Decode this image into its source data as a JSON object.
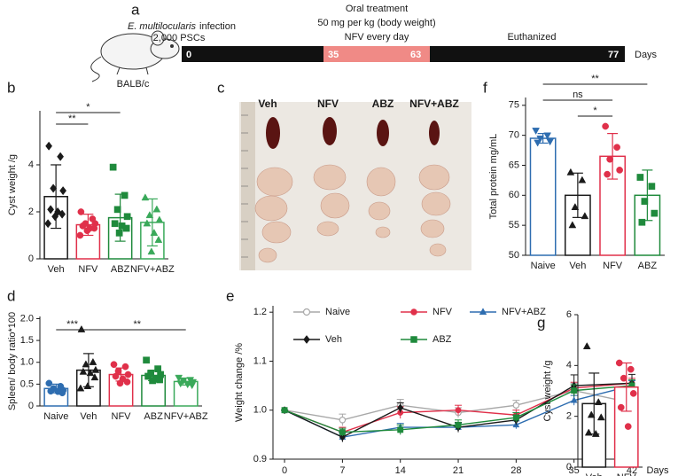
{
  "panel_labels": [
    "a",
    "b",
    "c",
    "d",
    "e",
    "f",
    "g"
  ],
  "timeline": {
    "species": "E. multilocularis",
    "infection": "infection",
    "pscs": "2,000 PSCs",
    "mouse": "BALB/c",
    "treatment": [
      "Oral treatment",
      "50 mg per kg (body weight)",
      "NFV every day"
    ],
    "euthanized": "Euthanized",
    "days": [
      0,
      35,
      63,
      77
    ],
    "days_label": "Days"
  },
  "photo": {
    "groups": [
      "Veh",
      "NFV",
      "ABZ",
      "NFV+ABZ"
    ]
  },
  "chart_data": [
    {
      "type": "bar",
      "y_label": "Cyst weight /g",
      "categories": [
        "Veh",
        "NFV",
        "ABZ",
        "NFV+ABZ"
      ],
      "values": [
        2.65,
        1.45,
        1.75,
        1.55
      ],
      "errors": [
        1.35,
        0.45,
        1.0,
        1.0
      ],
      "points": [
        [
          4.8,
          4.35,
          3.0,
          2.9,
          2.1,
          2.0,
          1.9,
          1.8,
          1.5
        ],
        [
          2.0,
          1.7,
          1.5,
          1.5,
          1.4,
          1.3,
          1.3,
          1.2,
          1.0
        ],
        [
          3.9,
          2.7,
          2.1,
          1.8,
          1.5,
          1.4,
          1.3,
          1.1
        ],
        [
          2.6,
          2.1,
          1.85,
          1.65,
          1.5,
          1.1,
          0.8,
          0.3
        ]
      ],
      "colors": [
        "#1a1a1a",
        "#e0304a",
        "#1f8a3c",
        "#3aa95a"
      ],
      "markers": [
        "diamond",
        "circle",
        "square",
        "triangle"
      ],
      "ylim": [
        0,
        6.3
      ],
      "yticks": [
        0,
        2,
        4
      ],
      "significance": [
        {
          "from": "Veh",
          "to": "NFV",
          "label": "**"
        },
        {
          "from": "Veh",
          "to": "ABZ",
          "label": "*"
        }
      ]
    },
    {
      "type": "bar",
      "y_label": "Spleen/ body ratio*100",
      "categories": [
        "Naive",
        "Veh",
        "NFV",
        "ABZ",
        "NFV+ABZ"
      ],
      "values": [
        0.4,
        0.82,
        0.72,
        0.7,
        0.56
      ],
      "errors": [
        0.1,
        0.38,
        0.15,
        0.12,
        0.08
      ],
      "points": [
        [
          0.52,
          0.45,
          0.4,
          0.36,
          0.34,
          0.33,
          0.3
        ],
        [
          1.75,
          1.0,
          0.95,
          0.82,
          0.78,
          0.75,
          0.65,
          0.45,
          0.4
        ],
        [
          0.95,
          0.9,
          0.8,
          0.72,
          0.68,
          0.62,
          0.55,
          0.52
        ],
        [
          1.05,
          0.85,
          0.75,
          0.72,
          0.68,
          0.62,
          0.6,
          0.58
        ],
        [
          0.65,
          0.6,
          0.58,
          0.55,
          0.52,
          0.5,
          0.48
        ]
      ],
      "colors": [
        "#2e6db0",
        "#1a1a1a",
        "#e0304a",
        "#1f8a3c",
        "#3aa95a"
      ],
      "markers": [
        "circle",
        "triangle",
        "circle",
        "square",
        "triangle-down"
      ],
      "ylim": [
        0,
        2.05
      ],
      "yticks": [
        0,
        0.5,
        {
          "value": 1,
          "label": "1.0"
        },
        1.5,
        {
          "value": 2,
          "label": "2.0"
        }
      ],
      "significance": [
        {
          "from": "Naive",
          "to": "Veh",
          "label": "***"
        },
        {
          "from": "Veh",
          "to": "NFV+ABZ",
          "label": "**"
        }
      ]
    },
    {
      "type": "line",
      "y_label": "Weight change /%",
      "x_label": "Days",
      "x": [
        0,
        7,
        14,
        21,
        28,
        35,
        42
      ],
      "series": [
        {
          "name": "Naive",
          "color": "#a8a8a8",
          "marker": "circle-open",
          "values": [
            1.0,
            0.98,
            1.01,
            0.995,
            1.01,
            1.04,
            1.015
          ],
          "errors": [
            0,
            0.012,
            0.012,
            0.01,
            0.01,
            0.015,
            0.004
          ]
        },
        {
          "name": "NFV",
          "color": "#e0304a",
          "marker": "circle",
          "values": [
            1.0,
            0.955,
            0.995,
            1.0,
            0.99,
            1.045,
            1.055
          ],
          "errors": [
            0,
            0.01,
            0.012,
            0.01,
            0.01,
            0.012,
            0.01
          ]
        },
        {
          "name": "NFV+ABZ",
          "color": "#2e6db0",
          "marker": "triangle",
          "values": [
            1.0,
            0.945,
            0.965,
            0.965,
            0.97,
            1.02,
            1.05
          ],
          "errors": [
            0,
            0.008,
            0.008,
            0.008,
            0.008,
            0.01,
            0.01
          ]
        },
        {
          "name": "Veh",
          "color": "#1a1a1a",
          "marker": "diamond",
          "values": [
            1.0,
            0.945,
            1.005,
            0.965,
            0.98,
            1.05,
            1.055
          ],
          "errors": [
            0,
            0.01,
            0.01,
            0.01,
            0.01,
            0.022,
            0.018
          ]
        },
        {
          "name": "ABZ",
          "color": "#1f8a3c",
          "marker": "square",
          "values": [
            1.0,
            0.955,
            0.96,
            0.97,
            0.985,
            1.04,
            1.05
          ],
          "errors": [
            0,
            0.008,
            0.01,
            0.01,
            0.01,
            0.012,
            0.012
          ]
        }
      ],
      "xlim": [
        -1.4,
        42.75
      ],
      "xticks": [
        0,
        7,
        14,
        21,
        28,
        35,
        42
      ],
      "ylim": [
        0.9,
        1.213
      ],
      "yticks": [
        0.9,
        {
          "value": 1,
          "label": "1.0"
        },
        1.1,
        1.2
      ]
    },
    {
      "type": "bar",
      "y_label": "Total protein mg/mL",
      "categories": [
        "Naive",
        "Veh",
        "NFV",
        "ABZ"
      ],
      "values": [
        69.5,
        60,
        66.5,
        60
      ],
      "errors": [
        0.8,
        3.7,
        3.8,
        4.2
      ],
      "points": [
        [
          70.8,
          70,
          69.5,
          69,
          68.8
        ],
        [
          63.8,
          62.5,
          58,
          56.5,
          55
        ],
        [
          71.5,
          68,
          66,
          64.2,
          63.5
        ],
        [
          63,
          61.5,
          59,
          57,
          55.5
        ]
      ],
      "colors": [
        "#2e6db0",
        "#1a1a1a",
        "#e0304a",
        "#1f8a3c"
      ],
      "markers": [
        "triangle-down",
        "triangle",
        "circle",
        "square"
      ],
      "ylim": [
        50,
        76.3
      ],
      "yticks": [
        50,
        55,
        60,
        65,
        70,
        75
      ],
      "significance": [
        {
          "from": "Naive",
          "to": "NFV",
          "label": "ns"
        },
        {
          "from": "Veh",
          "to": "NFV",
          "label": "*"
        },
        {
          "from": "Naive",
          "to": "ABZ",
          "label": "**"
        }
      ]
    },
    {
      "type": "bar",
      "y_label": "Cyst weight /g",
      "categories": [
        "Veh",
        "NFV"
      ],
      "values": [
        2.5,
        3.15
      ],
      "errors": [
        1.2,
        0.95
      ],
      "points": [
        [
          4.75,
          2.55,
          2.05,
          1.95,
          1.35,
          1.3
        ],
        [
          4.1,
          3.85,
          3.5,
          2.9,
          2.35,
          1.6
        ]
      ],
      "colors": [
        "#1a1a1a",
        "#e0304a"
      ],
      "markers": [
        "triangle",
        "circle"
      ],
      "ylim": [
        0,
        6
      ],
      "yticks": [
        0,
        2,
        4,
        6
      ],
      "significance": []
    }
  ]
}
